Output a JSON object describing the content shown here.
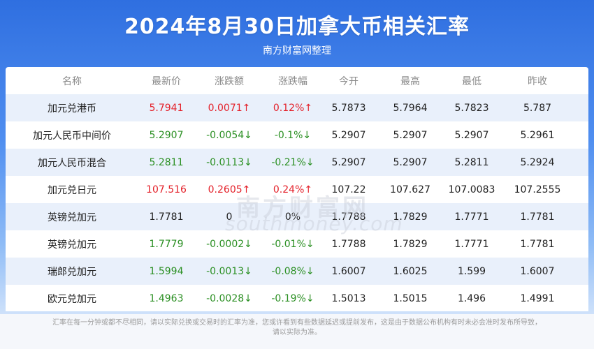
{
  "header": {
    "title": "2024年8月30日加拿大币相关汇率",
    "subtitle": "南方财富网整理"
  },
  "table": {
    "columns": [
      "名称",
      "最新价",
      "涨跌额",
      "涨跌幅",
      "今开",
      "最高",
      "最低",
      "昨收"
    ],
    "rows": [
      {
        "name": "加元兑港币",
        "latest": "5.7941",
        "change": "0.0071↑",
        "pct": "0.12%↑",
        "open": "5.7873",
        "high": "5.7964",
        "low": "5.7823",
        "prev": "5.787",
        "trend": "up"
      },
      {
        "name": "加元人民币中间价",
        "latest": "5.2907",
        "change": "-0.0054↓",
        "pct": "-0.1%↓",
        "open": "5.2907",
        "high": "5.2907",
        "low": "5.2907",
        "prev": "5.2961",
        "trend": "down"
      },
      {
        "name": "加元人民币混合",
        "latest": "5.2811",
        "change": "-0.0113↓",
        "pct": "-0.21%↓",
        "open": "5.2907",
        "high": "5.2907",
        "low": "5.2811",
        "prev": "5.2924",
        "trend": "down"
      },
      {
        "name": "加元兑日元",
        "latest": "107.516",
        "change": "0.2605↑",
        "pct": "0.24%↑",
        "open": "107.22",
        "high": "107.627",
        "low": "107.0083",
        "prev": "107.2555",
        "trend": "up"
      },
      {
        "name": "英镑兑加元",
        "latest": "1.7781",
        "change": "0",
        "pct": "0%",
        "open": "1.7788",
        "high": "1.7829",
        "low": "1.7771",
        "prev": "1.7781",
        "trend": "flat"
      },
      {
        "name": "英镑兑加元",
        "latest": "1.7779",
        "change": "-0.0002↓",
        "pct": "-0.01%↓",
        "open": "1.7788",
        "high": "1.7829",
        "low": "1.7771",
        "prev": "1.7781",
        "trend": "down"
      },
      {
        "name": "瑞郎兑加元",
        "latest": "1.5994",
        "change": "-0.0013↓",
        "pct": "-0.08%↓",
        "open": "1.6007",
        "high": "1.6025",
        "low": "1.599",
        "prev": "1.6007",
        "trend": "down"
      },
      {
        "name": "欧元兑加元",
        "latest": "1.4963",
        "change": "-0.0028↓",
        "pct": "-0.19%↓",
        "open": "1.5013",
        "high": "1.5015",
        "low": "1.496",
        "prev": "1.4991",
        "trend": "down"
      }
    ]
  },
  "watermark": {
    "cn": "南方财富网",
    "en": "southmoney.com"
  },
  "footer": {
    "line1": "汇率在每一分钟或都不尽相同，请以实际兑换或交易时的汇率为准，您或许看到有些数据延迟或提前发布，这是由于数据公布机构有时未必会准时发布所导致，",
    "line2": "请以实际为准。"
  },
  "colors": {
    "up": "#e4212a",
    "down": "#2a8f22",
    "header_blue": "#2f6fe0",
    "row_alt": "#e9f0fb"
  }
}
